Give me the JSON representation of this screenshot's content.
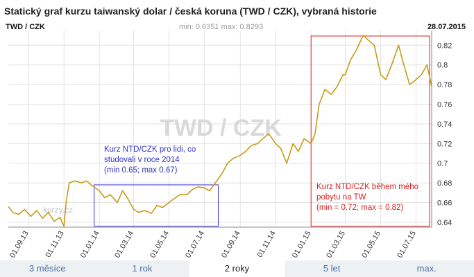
{
  "header": {
    "title": "Statický graf kurzu taiwanský dolar / česká koruna (TWD / CZK), vybraná historie",
    "pair": "TWD / CZK",
    "minmax": "min: 0.6351   max: 0.8293",
    "date": "28.07.2015"
  },
  "watermark": "TWD / CZK",
  "site_watermark": "kurzy.cz",
  "annotations": [
    {
      "lines": [
        "Kurz NTD/CZK pro lidi, co",
        "studovali v roce 2014",
        "(min 0.65; max 0.67)"
      ],
      "color": "#3333cc"
    },
    {
      "lines": [
        "Kurz NTD/CZK během mého",
        "pobytu na TW",
        "(min = 0.72; max = 0.82)"
      ],
      "color": "#dd2222"
    }
  ],
  "tabs": [
    {
      "label": "3 měsíce",
      "active": false
    },
    {
      "label": "1 rok",
      "active": false
    },
    {
      "label": "2 roky",
      "active": true
    },
    {
      "label": "5 let",
      "active": false
    },
    {
      "label": "max.",
      "active": false
    }
  ],
  "chart_data": {
    "type": "line",
    "title": "TWD / CZK",
    "line_color": "#c89a1a",
    "ylim": [
      0.635,
      0.835
    ],
    "y_ticks": [
      0.64,
      0.66,
      0.68,
      0.7,
      0.72,
      0.74,
      0.76,
      0.78,
      0.8,
      0.82
    ],
    "x_ticks": [
      "01.09.13",
      "01.11.13",
      "01.01.14",
      "01.03.14",
      "01.05.14",
      "01.07.14",
      "01.09.14",
      "01.11.14",
      "01.01.15",
      "01.03.15",
      "01.05.15",
      "01.07.15"
    ],
    "x_range": [
      "2013-07-28",
      "2015-07-28"
    ],
    "series": [
      {
        "x": [
          "2013-07-28",
          "2013-08-05",
          "2013-08-15",
          "2013-08-25",
          "2013-09-05",
          "2013-09-15",
          "2013-09-25",
          "2013-10-05",
          "2013-10-15",
          "2013-10-25",
          "2013-11-01",
          "2013-11-05",
          "2013-11-10",
          "2013-11-20",
          "2013-12-01",
          "2013-12-10",
          "2013-12-20",
          "2014-01-01",
          "2014-01-10",
          "2014-01-20",
          "2014-02-01",
          "2014-02-10",
          "2014-02-20",
          "2014-03-01",
          "2014-03-10",
          "2014-03-20",
          "2014-04-01",
          "2014-04-10",
          "2014-04-20",
          "2014-05-01",
          "2014-05-10",
          "2014-05-20",
          "2014-06-01",
          "2014-06-10",
          "2014-06-20",
          "2014-07-01",
          "2014-07-10",
          "2014-07-20",
          "2014-08-01",
          "2014-08-10",
          "2014-08-20",
          "2014-09-01",
          "2014-09-10",
          "2014-09-20",
          "2014-10-01",
          "2014-10-10",
          "2014-10-20",
          "2014-11-01",
          "2014-11-10",
          "2014-11-20",
          "2014-12-01",
          "2014-12-10",
          "2014-12-20",
          "2015-01-01",
          "2015-01-08",
          "2015-01-15",
          "2015-01-25",
          "2015-02-05",
          "2015-02-15",
          "2015-02-25",
          "2015-03-01",
          "2015-03-10",
          "2015-03-20",
          "2015-04-01",
          "2015-04-10",
          "2015-04-20",
          "2015-05-01",
          "2015-05-10",
          "2015-05-20",
          "2015-06-01",
          "2015-06-10",
          "2015-06-20",
          "2015-07-01",
          "2015-07-10",
          "2015-07-20",
          "2015-07-28"
        ],
        "y": [
          0.656,
          0.65,
          0.648,
          0.653,
          0.646,
          0.652,
          0.644,
          0.65,
          0.641,
          0.645,
          0.636,
          0.662,
          0.68,
          0.682,
          0.68,
          0.682,
          0.677,
          0.672,
          0.665,
          0.668,
          0.66,
          0.672,
          0.663,
          0.653,
          0.65,
          0.652,
          0.649,
          0.657,
          0.655,
          0.66,
          0.664,
          0.668,
          0.668,
          0.673,
          0.676,
          0.675,
          0.672,
          0.68,
          0.69,
          0.7,
          0.705,
          0.708,
          0.712,
          0.718,
          0.72,
          0.725,
          0.73,
          0.72,
          0.715,
          0.7,
          0.72,
          0.712,
          0.725,
          0.72,
          0.73,
          0.76,
          0.775,
          0.77,
          0.778,
          0.79,
          0.79,
          0.805,
          0.815,
          0.83,
          0.825,
          0.82,
          0.79,
          0.785,
          0.8,
          0.82,
          0.8,
          0.78,
          0.785,
          0.79,
          0.8,
          0.778
        ]
      }
    ]
  }
}
